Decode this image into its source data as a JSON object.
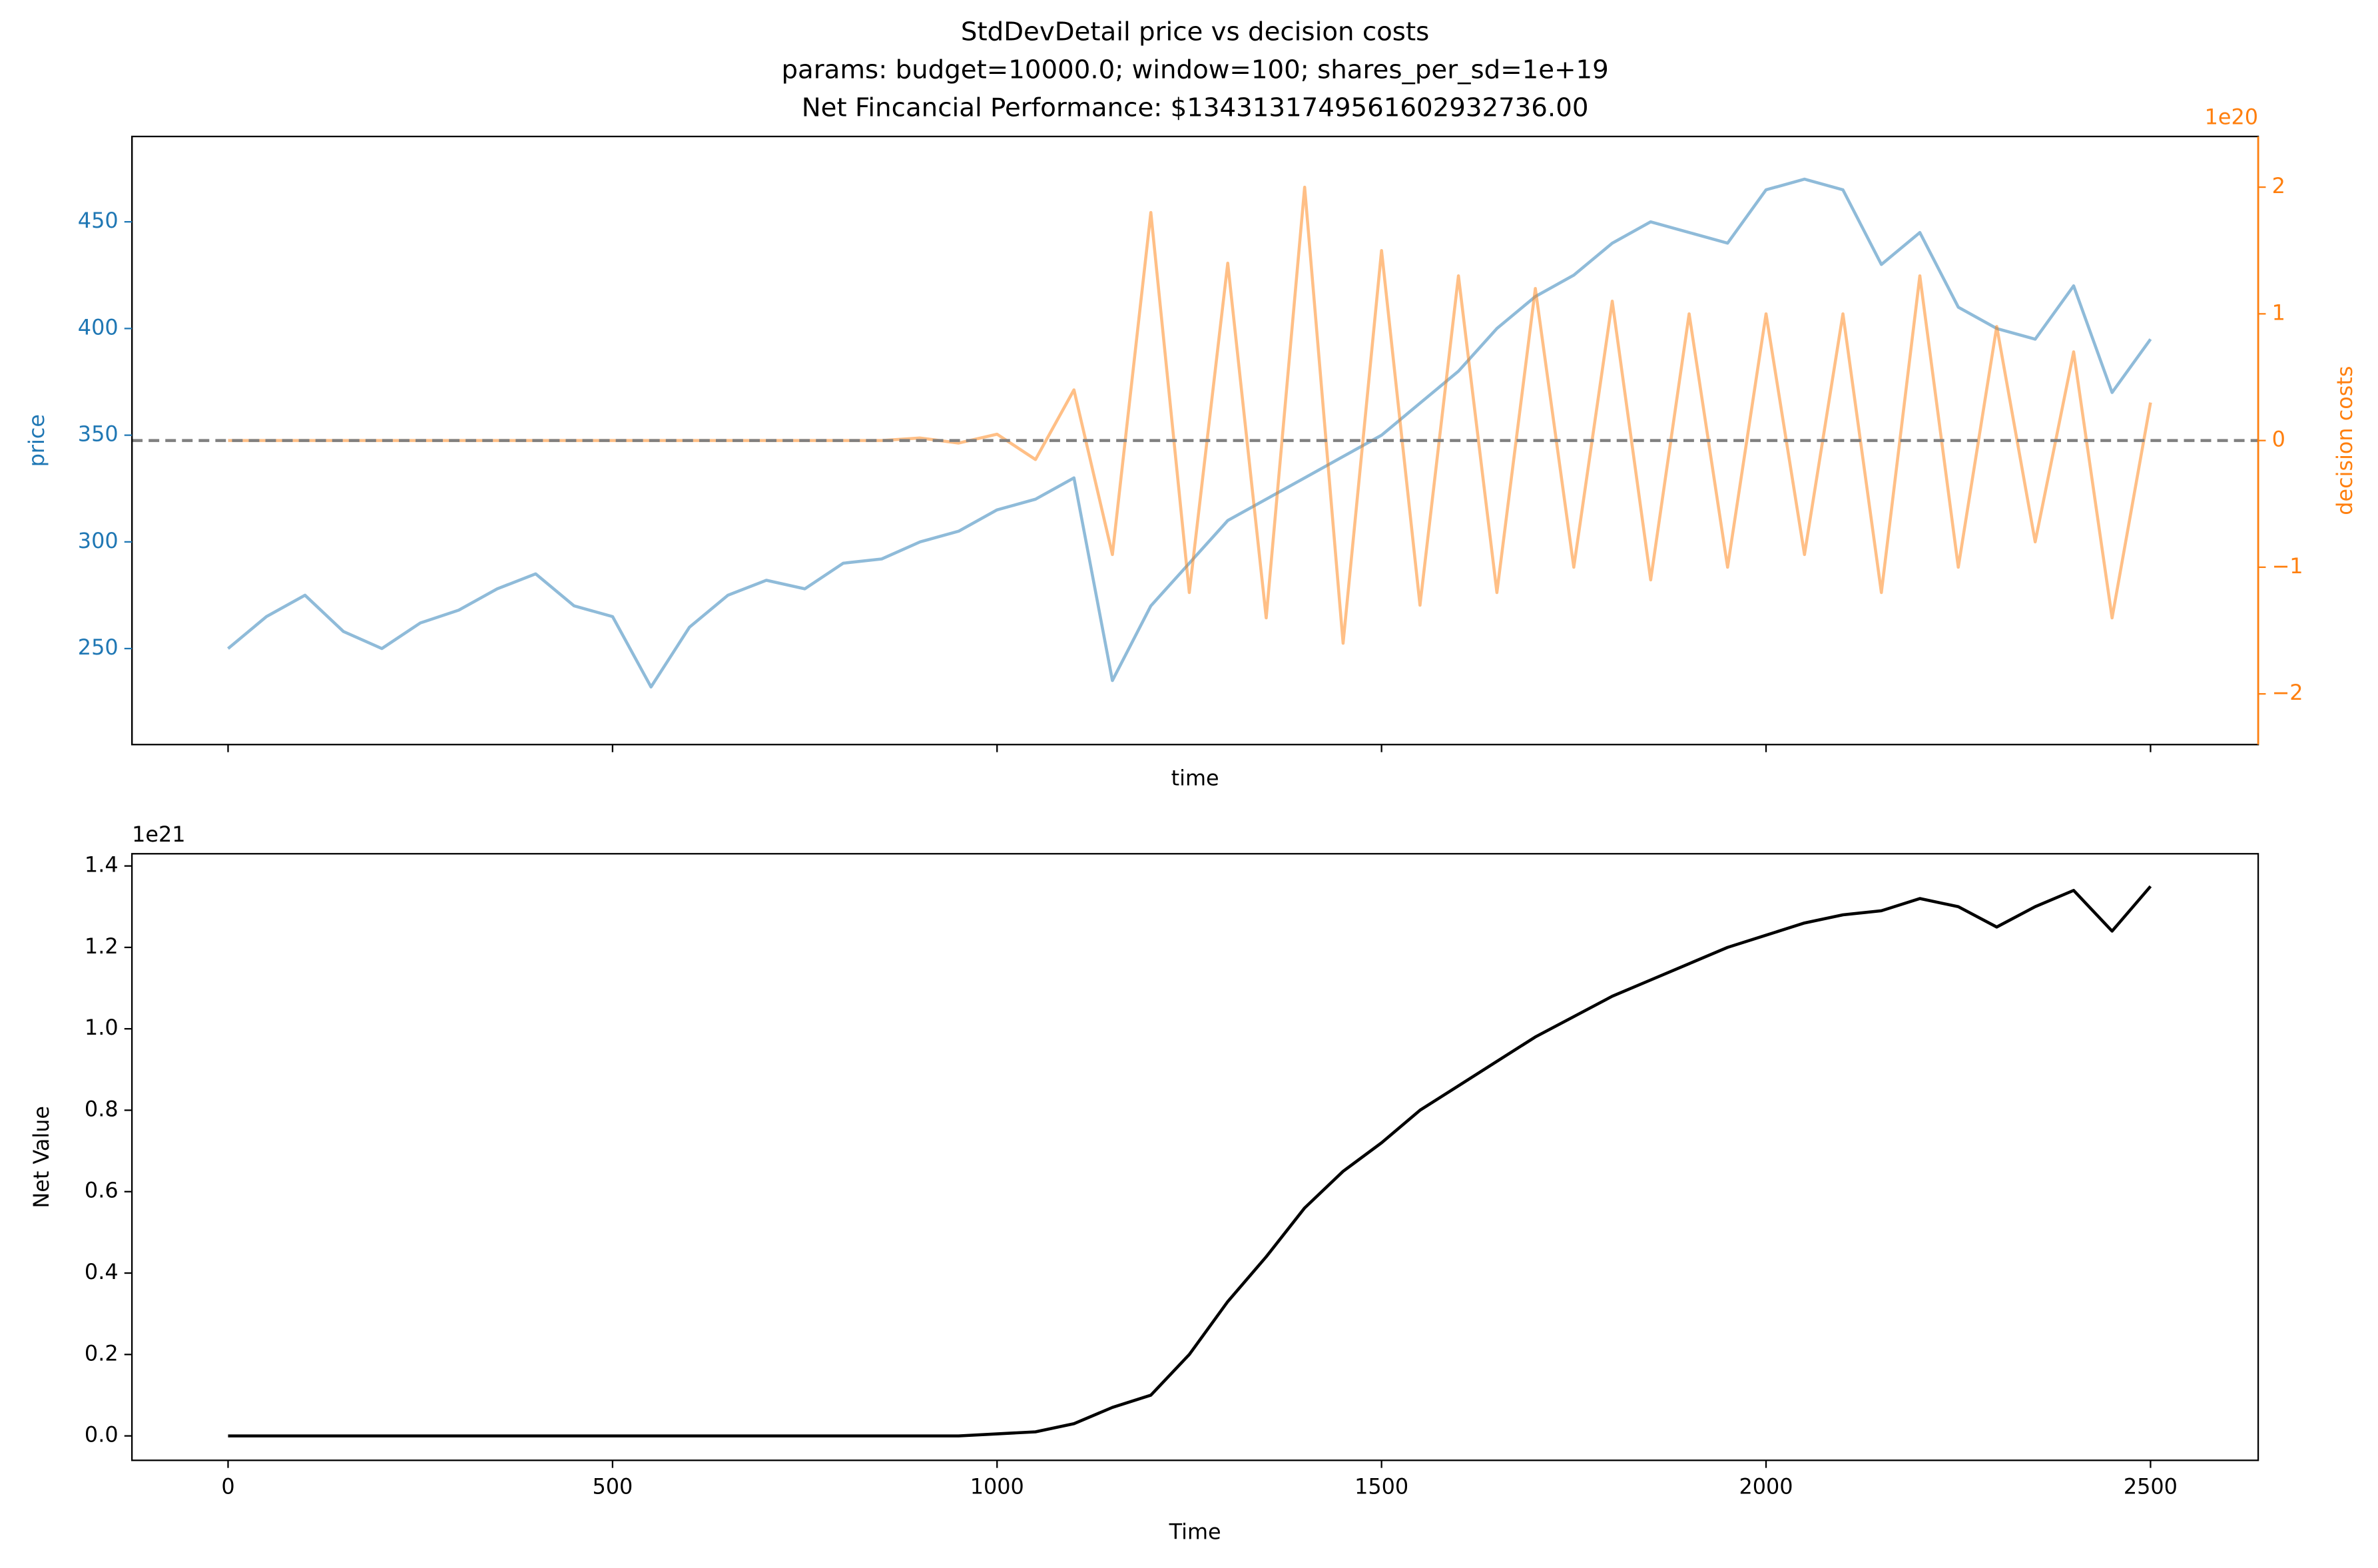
{
  "chart_data": [
    {
      "type": "line",
      "title": [
        "StdDevDetail price vs decision costs",
        "params: budget=10000.0; window=100; shares_per_sd=1e+19",
        "Net Fincancial Performance: $1343131749561602932736.00"
      ],
      "xlabel": "time",
      "ylabel": "price",
      "y2label": "decision costs",
      "y2_offset_label": "1e20",
      "x": [
        0,
        50,
        100,
        150,
        200,
        250,
        300,
        350,
        400,
        450,
        500,
        550,
        600,
        650,
        700,
        750,
        800,
        850,
        900,
        950,
        1000,
        1050,
        1100,
        1150,
        1200,
        1250,
        1300,
        1350,
        1400,
        1450,
        1500,
        1550,
        1600,
        1650,
        1700,
        1750,
        1800,
        1850,
        1900,
        1950,
        2000,
        2050,
        2100,
        2150,
        2200,
        2250,
        2300,
        2350,
        2400,
        2450,
        2500
      ],
      "series": [
        {
          "name": "price",
          "color": "#1f77b4",
          "axis": "y",
          "values": [
            250,
            265,
            275,
            258,
            250,
            262,
            268,
            278,
            285,
            270,
            265,
            232,
            260,
            275,
            282,
            278,
            290,
            292,
            300,
            305,
            315,
            320,
            330,
            235,
            270,
            290,
            310,
            320,
            330,
            340,
            350,
            365,
            380,
            400,
            415,
            425,
            440,
            450,
            445,
            440,
            465,
            470,
            465,
            430,
            445,
            410,
            400,
            395,
            420,
            370,
            395
          ]
        },
        {
          "name": "decision costs",
          "color": "#ff7f0e",
          "axis": "y2",
          "values": [
            0,
            0,
            0,
            0,
            0,
            0,
            0,
            0,
            0,
            0,
            0,
            0,
            0,
            0,
            0,
            0,
            0,
            0,
            0.02,
            -0.02,
            0.05,
            -0.15,
            0.4,
            -0.9,
            1.8,
            -1.2,
            1.4,
            -1.4,
            2.0,
            -1.6,
            1.5,
            -1.3,
            1.3,
            -1.2,
            1.2,
            -1.0,
            1.1,
            -1.1,
            1.0,
            -1.0,
            1.0,
            -0.9,
            1.0,
            -1.2,
            1.3,
            -1.0,
            0.9,
            -0.8,
            0.7,
            -1.4,
            0.3
          ]
        }
      ],
      "hline": {
        "value": 0,
        "axis": "y2",
        "color": "#808080"
      },
      "xlim": [
        -125,
        2640
      ],
      "xticks": [
        0,
        500,
        1000,
        1500,
        2000,
        2500
      ],
      "xtick_labels": false,
      "ylim": [
        205,
        490
      ],
      "yticks": [
        250,
        300,
        350,
        400,
        450
      ],
      "y2lim": [
        -2.4,
        2.4
      ],
      "y2ticks": [
        {
          "value": -2,
          "label": "−2"
        },
        {
          "value": -1,
          "label": "−1"
        },
        0,
        1,
        2
      ]
    },
    {
      "type": "line",
      "xlabel": "Time",
      "ylabel": "Net Value",
      "y_offset_label": "1e21",
      "x": [
        0,
        50,
        100,
        150,
        200,
        250,
        300,
        350,
        400,
        450,
        500,
        550,
        600,
        650,
        700,
        750,
        800,
        850,
        900,
        950,
        1000,
        1050,
        1100,
        1150,
        1200,
        1250,
        1300,
        1350,
        1400,
        1450,
        1500,
        1550,
        1600,
        1650,
        1700,
        1750,
        1800,
        1850,
        1900,
        1950,
        2000,
        2050,
        2100,
        2150,
        2200,
        2250,
        2300,
        2350,
        2400,
        2450,
        2500
      ],
      "series": [
        {
          "name": "Net Value",
          "color": "#000000",
          "axis": "y",
          "values": [
            0,
            0,
            0,
            0,
            0,
            0,
            0,
            0,
            0,
            0,
            0,
            0,
            0,
            0,
            0,
            0,
            0,
            0,
            0,
            0,
            0.005,
            0.01,
            0.03,
            0.07,
            0.1,
            0.2,
            0.33,
            0.44,
            0.56,
            0.65,
            0.72,
            0.8,
            0.86,
            0.92,
            0.98,
            1.03,
            1.08,
            1.12,
            1.16,
            1.2,
            1.23,
            1.26,
            1.28,
            1.29,
            1.32,
            1.3,
            1.25,
            1.3,
            1.34,
            1.24,
            1.35
          ]
        }
      ],
      "xlim": [
        -125,
        2640
      ],
      "xticks": [
        0,
        500,
        1000,
        1500,
        2000,
        2500
      ],
      "xtick_labels": true,
      "ylim": [
        -0.06,
        1.43
      ],
      "yticks": [
        {
          "value": 0,
          "label": "0.0"
        },
        0.2,
        0.4,
        0.6,
        0.8,
        {
          "value": 1,
          "label": "1.0"
        },
        1.2,
        1.4
      ]
    }
  ]
}
